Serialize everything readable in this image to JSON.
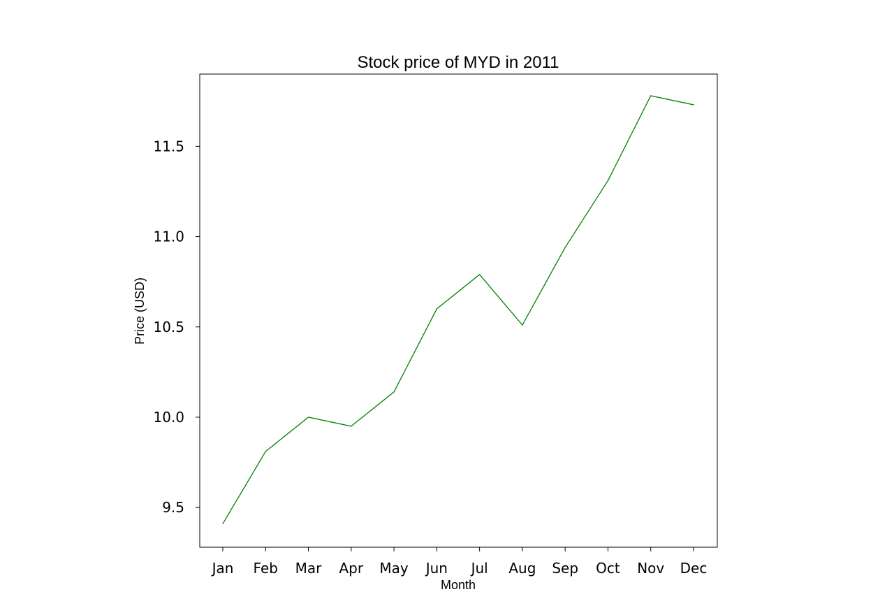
{
  "chart_data": {
    "type": "line",
    "title": "Stock price of MYD in 2011",
    "xlabel": "Month",
    "ylabel": "Price (USD)",
    "categories": [
      "Jan",
      "Feb",
      "Mar",
      "Apr",
      "May",
      "Jun",
      "Jul",
      "Aug",
      "Sep",
      "Oct",
      "Nov",
      "Dec"
    ],
    "series": [
      {
        "values": [
          9.41,
          9.81,
          10.0,
          9.95,
          10.14,
          10.6,
          10.79,
          10.51,
          10.94,
          11.31,
          11.78,
          11.73
        ],
        "color": "#008000"
      }
    ],
    "yticks": [
      9.5,
      10.0,
      10.5,
      11.0,
      11.5
    ],
    "ytick_labels": [
      "9.5",
      "10.0",
      "10.5",
      "11.0",
      "11.5"
    ],
    "ylim": [
      9.28,
      11.9
    ],
    "grid": false,
    "legend": "none"
  }
}
